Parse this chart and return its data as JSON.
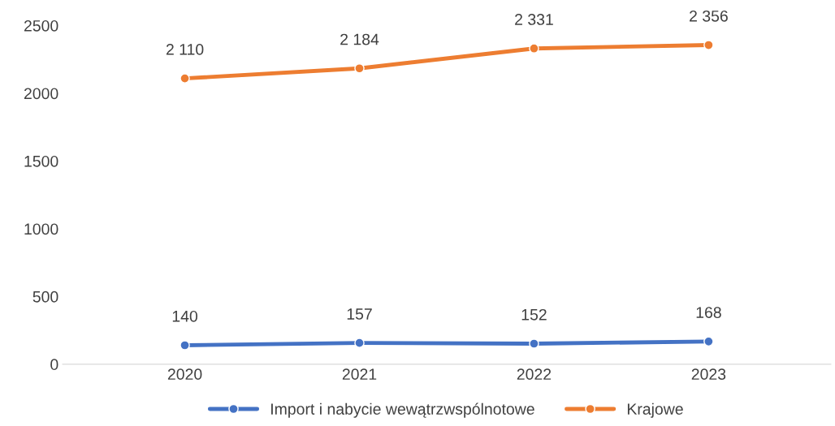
{
  "chart_data": {
    "type": "line",
    "categories": [
      "2020",
      "2021",
      "2022",
      "2023"
    ],
    "series": [
      {
        "name": "Import i nabycie wewątrzwspólnotowe",
        "color": "#4472c4",
        "values": [
          140,
          157,
          152,
          168
        ],
        "value_labels": [
          "140",
          "157",
          "152",
          "168"
        ]
      },
      {
        "name": "Krajowe",
        "color": "#ed7d31",
        "values": [
          2110,
          2184,
          2331,
          2356
        ],
        "value_labels": [
          "2 110",
          "2 184",
          "2 331",
          "2 356"
        ]
      }
    ],
    "ylim": [
      0,
      2500
    ],
    "yticks": [
      0,
      500,
      1000,
      1500,
      2000,
      2500
    ],
    "grid": false,
    "legend": "bottom",
    "marker": "circle",
    "line_style": "solid"
  }
}
